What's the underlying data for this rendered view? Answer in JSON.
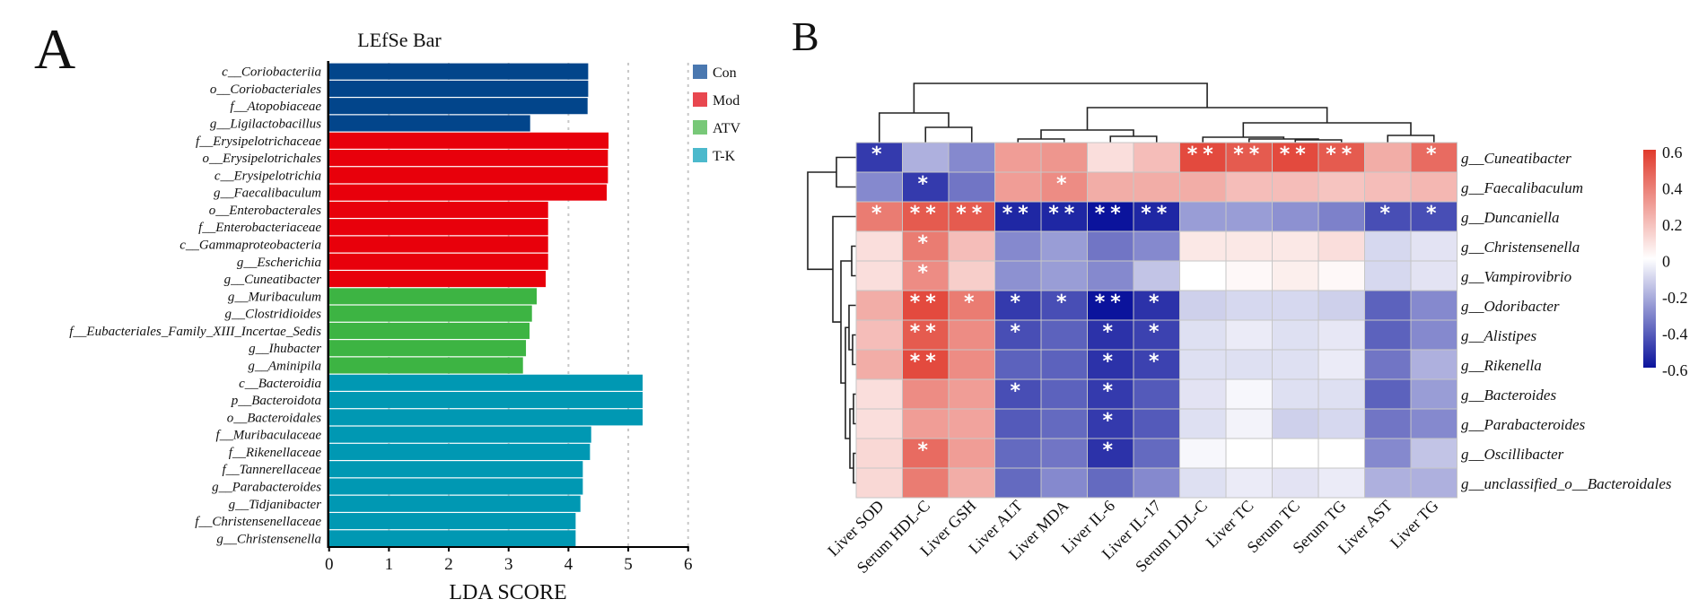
{
  "panels": {
    "a": "A",
    "b": "B"
  },
  "chart_data": [
    {
      "type": "bar",
      "orientation": "horizontal",
      "title": "LEfSe Bar",
      "xlabel": "LDA SCORE",
      "xlim": [
        0,
        6
      ],
      "xticks": [
        "0",
        "1",
        "2",
        "3",
        "4",
        "5",
        "6"
      ],
      "grid": "vertical dashed",
      "legend_position": "top-right",
      "groups": [
        {
          "name": "Con",
          "color": "#02458b",
          "legend_color": "#4a78b0"
        },
        {
          "name": "Mod",
          "color": "#e8000b",
          "legend_color": "#e8474f"
        },
        {
          "name": "ATV",
          "color": "#3db443",
          "legend_color": "#78c878"
        },
        {
          "name": "T-K",
          "color": "#0098b3",
          "legend_color": "#4cb9cc"
        }
      ],
      "bars": [
        {
          "label": "c__Coriobacteriia",
          "value": 4.33,
          "group": "Con"
        },
        {
          "label": "o__Coriobacteriales",
          "value": 4.33,
          "group": "Con"
        },
        {
          "label": "f__Atopobiaceae",
          "value": 4.32,
          "group": "Con"
        },
        {
          "label": "g__Ligilactobacillus",
          "value": 3.36,
          "group": "Con"
        },
        {
          "label": "f__Erysipelotrichaceae",
          "value": 4.67,
          "group": "Mod"
        },
        {
          "label": "o__Erysipelotrichales",
          "value": 4.66,
          "group": "Mod"
        },
        {
          "label": "c__Erysipelotrichia",
          "value": 4.66,
          "group": "Mod"
        },
        {
          "label": "g__Faecalibaculum",
          "value": 4.64,
          "group": "Mod"
        },
        {
          "label": "o__Enterobacterales",
          "value": 3.66,
          "group": "Mod"
        },
        {
          "label": "f__Enterobacteriaceae",
          "value": 3.66,
          "group": "Mod"
        },
        {
          "label": "c__Gammaproteobacteria",
          "value": 3.66,
          "group": "Mod"
        },
        {
          "label": "g__Escherichia",
          "value": 3.66,
          "group": "Mod"
        },
        {
          "label": "g__Cuneatibacter",
          "value": 3.62,
          "group": "Mod"
        },
        {
          "label": "g__Muribaculum",
          "value": 3.47,
          "group": "ATV"
        },
        {
          "label": "g__Clostridioides",
          "value": 3.39,
          "group": "ATV"
        },
        {
          "label": "f__Eubacteriales_Family_XIII_Incertae_Sedis",
          "value": 3.35,
          "group": "ATV"
        },
        {
          "label": "g__Ihubacter",
          "value": 3.29,
          "group": "ATV"
        },
        {
          "label": "g__Aminipila",
          "value": 3.24,
          "group": "ATV"
        },
        {
          "label": "c__Bacteroidia",
          "value": 5.24,
          "group": "T-K"
        },
        {
          "label": "p__Bacteroidota",
          "value": 5.24,
          "group": "T-K"
        },
        {
          "label": "o__Bacteroidales",
          "value": 5.24,
          "group": "T-K"
        },
        {
          "label": "f__Muribaculaceae",
          "value": 4.38,
          "group": "T-K"
        },
        {
          "label": "f__Rikenellaceae",
          "value": 4.36,
          "group": "T-K"
        },
        {
          "label": "f__Tannerellaceae",
          "value": 4.24,
          "group": "T-K"
        },
        {
          "label": "g__Parabacteroides",
          "value": 4.24,
          "group": "T-K"
        },
        {
          "label": "g__Tidjanibacter",
          "value": 4.2,
          "group": "T-K"
        },
        {
          "label": "f__Christensenellaceae",
          "value": 4.12,
          "group": "T-K"
        },
        {
          "label": "g__Christensenella",
          "value": 4.12,
          "group": "T-K"
        }
      ]
    },
    {
      "type": "heatmap",
      "clustered": true,
      "colorscale": {
        "min": -0.6,
        "max": 0.6,
        "low": "#0b139c",
        "mid": "#ffffff",
        "high": "#e03a2c"
      },
      "colorbar_ticks": [
        "0.6",
        "0.4",
        "0.2",
        "0",
        "-0.2",
        "-0.4",
        "-0.6"
      ],
      "columns": [
        "Liver SOD",
        "Serum HDL-C",
        "Liver GSH",
        "Liver ALT",
        "Liver MDA",
        "Liver IL-6",
        "Liver IL-17",
        "Serum LDL-C",
        "Liver TC",
        "Serum TC",
        "Serum TG",
        "Liver AST",
        "Liver TG"
      ],
      "rows": [
        {
          "label": "g__Cuneatibacter",
          "values": [
            -0.5,
            -0.2,
            -0.3,
            0.3,
            0.32,
            0.1,
            0.2,
            0.55,
            0.5,
            0.55,
            0.5,
            0.25,
            0.45
          ],
          "sig": [
            "*",
            "",
            "",
            "",
            "",
            "",
            "",
            "**",
            "**",
            "**",
            "**",
            "",
            "*"
          ]
        },
        {
          "label": "g__Faecalibaculum",
          "values": [
            -0.3,
            -0.5,
            -0.35,
            0.3,
            0.35,
            0.25,
            0.25,
            0.25,
            0.2,
            0.2,
            0.18,
            0.2,
            0.22
          ],
          "sig": [
            "",
            "*",
            "",
            "",
            "*",
            "",
            "",
            "",
            "",
            "",
            "",
            "",
            ""
          ]
        },
        {
          "label": "g__Duncaniella",
          "values": [
            0.4,
            0.5,
            0.5,
            -0.55,
            -0.55,
            -0.6,
            -0.55,
            -0.25,
            -0.25,
            -0.28,
            -0.32,
            -0.45,
            -0.45
          ],
          "sig": [
            "*",
            "**",
            "**",
            "**",
            "**",
            "**",
            "**",
            "",
            "",
            "",
            "",
            "*",
            "*"
          ]
        },
        {
          "label": "g__Christensenella",
          "values": [
            0.1,
            0.4,
            0.2,
            -0.3,
            -0.25,
            -0.35,
            -0.3,
            0.07,
            0.07,
            0.07,
            0.1,
            -0.1,
            -0.07
          ],
          "sig": [
            "",
            "*",
            "",
            "",
            "",
            "",
            "",
            "",
            "",
            "",
            "",
            "",
            ""
          ]
        },
        {
          "label": "g__Vampirovibrio",
          "values": [
            0.1,
            0.35,
            0.15,
            -0.28,
            -0.25,
            -0.3,
            -0.15,
            0,
            0.02,
            0.05,
            0.02,
            -0.1,
            -0.07
          ],
          "sig": [
            "",
            "*",
            "",
            "",
            "",
            "",
            "",
            "",
            "",
            "",
            "",
            "",
            ""
          ]
        },
        {
          "label": "g__Odoribacter",
          "values": [
            0.25,
            0.55,
            0.4,
            -0.5,
            -0.45,
            -0.6,
            -0.52,
            -0.12,
            -0.1,
            -0.1,
            -0.12,
            -0.4,
            -0.3
          ],
          "sig": [
            "",
            "**",
            "*",
            "*",
            "*",
            "**",
            "*",
            "",
            "",
            "",
            "",
            "",
            ""
          ]
        },
        {
          "label": "g__Alistipes",
          "values": [
            0.2,
            0.5,
            0.35,
            -0.45,
            -0.4,
            -0.52,
            -0.48,
            -0.08,
            -0.05,
            -0.08,
            -0.06,
            -0.4,
            -0.3
          ],
          "sig": [
            "",
            "**",
            "",
            "*",
            "",
            "*",
            "*",
            "",
            "",
            "",
            "",
            "",
            ""
          ]
        },
        {
          "label": "g__Rikenella",
          "values": [
            0.25,
            0.55,
            0.35,
            -0.4,
            -0.4,
            -0.52,
            -0.48,
            -0.08,
            -0.08,
            -0.08,
            -0.05,
            -0.35,
            -0.2
          ],
          "sig": [
            "",
            "**",
            "",
            "",
            "",
            "*",
            "*",
            "",
            "",
            "",
            "",
            "",
            ""
          ]
        },
        {
          "label": "g__Bacteroides",
          "values": [
            0.1,
            0.35,
            0.3,
            -0.45,
            -0.4,
            -0.5,
            -0.42,
            -0.07,
            -0.02,
            -0.08,
            -0.08,
            -0.4,
            -0.25
          ],
          "sig": [
            "",
            "",
            "",
            "*",
            "",
            "*",
            "",
            "",
            "",
            "",
            "",
            "",
            ""
          ]
        },
        {
          "label": "g__Parabacteroides",
          "values": [
            0.1,
            0.3,
            0.28,
            -0.42,
            -0.38,
            -0.5,
            -0.42,
            -0.08,
            -0.03,
            -0.12,
            -0.1,
            -0.35,
            -0.3
          ],
          "sig": [
            "",
            "",
            "",
            "",
            "",
            "*",
            "",
            "",
            "",
            "",
            "",
            "",
            ""
          ]
        },
        {
          "label": "g__Oscillibacter",
          "values": [
            0.12,
            0.45,
            0.3,
            -0.38,
            -0.35,
            -0.52,
            -0.38,
            -0.02,
            0,
            0,
            0,
            -0.3,
            -0.15
          ],
          "sig": [
            "",
            "*",
            "",
            "",
            "",
            "*",
            "",
            "",
            "",
            "",
            "",
            "",
            ""
          ]
        },
        {
          "label": "g__unclassified_o__Bacteroidales",
          "values": [
            0.12,
            0.4,
            0.25,
            -0.38,
            -0.3,
            -0.38,
            -0.3,
            -0.08,
            -0.05,
            -0.07,
            -0.05,
            -0.2,
            -0.2
          ],
          "sig": [
            "",
            "",
            "",
            "",
            "",
            "",
            "",
            "",
            "",
            "",
            "",
            "",
            ""
          ]
        }
      ]
    }
  ]
}
